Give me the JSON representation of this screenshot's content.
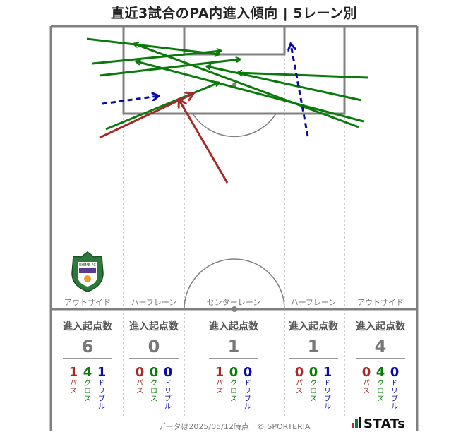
{
  "title": "直近3試合のPA内進入傾向 | 5レーン別",
  "lanes": [
    {
      "name": "アウトサイド",
      "header": "進入起点数",
      "total": "6",
      "pass": "1",
      "cross": "4",
      "dribble": "1"
    },
    {
      "name": "ハーフレーン",
      "header": "進入起点数",
      "total": "0",
      "pass": "0",
      "cross": "0",
      "dribble": "0"
    },
    {
      "name": "センターレーン",
      "header": "進入起点数",
      "total": "1",
      "pass": "1",
      "cross": "0",
      "dribble": "0"
    },
    {
      "name": "ハーフレーン",
      "header": "進入起点数",
      "total": "1",
      "pass": "0",
      "cross": "0",
      "dribble": "1"
    },
    {
      "name": "アウトサイド",
      "header": "進入起点数",
      "total": "4",
      "pass": "0",
      "cross": "4",
      "dribble": "0"
    }
  ],
  "type_labels": {
    "pass": "パス",
    "cross": "クロス",
    "dribble": "ドリブル"
  },
  "colors": {
    "pass": "#a52a2a",
    "cross": "#0a7a0a",
    "dribble": "#0a0aa8",
    "pitch_line": "#808080"
  },
  "footer": "データは2025/05/12時点　© SPORTERIA",
  "brand": "STATs",
  "crest_text": "EHIME FC",
  "arrows": [
    {
      "type": "cross",
      "from": [
        123,
        55
      ],
      "to": [
        310,
        77
      ]
    },
    {
      "type": "cross",
      "from": [
        131,
        90
      ],
      "to": [
        313,
        72
      ]
    },
    {
      "type": "cross",
      "from": [
        141,
        107
      ],
      "to": [
        340,
        84
      ]
    },
    {
      "type": "cross",
      "from": [
        150,
        183
      ],
      "to": [
        310,
        117
      ]
    },
    {
      "type": "cross",
      "from": [
        508,
        180
      ],
      "to": [
        190,
        62
      ]
    },
    {
      "type": "cross",
      "from": [
        515,
        172
      ],
      "to": [
        193,
        87
      ]
    },
    {
      "type": "cross",
      "from": [
        512,
        142
      ],
      "to": [
        293,
        94
      ]
    },
    {
      "type": "cross",
      "from": [
        522,
        110
      ],
      "to": [
        337,
        103
      ]
    },
    {
      "type": "pass",
      "from": [
        141,
        195
      ],
      "to": [
        273,
        133
      ]
    },
    {
      "type": "pass",
      "from": [
        322,
        259
      ],
      "to": [
        254,
        142
      ]
    },
    {
      "type": "dribble",
      "from": [
        145,
        147
      ],
      "to": [
        224,
        136
      ]
    },
    {
      "type": "dribble",
      "from": [
        436,
        193
      ],
      "to": [
        412,
        63
      ]
    }
  ]
}
